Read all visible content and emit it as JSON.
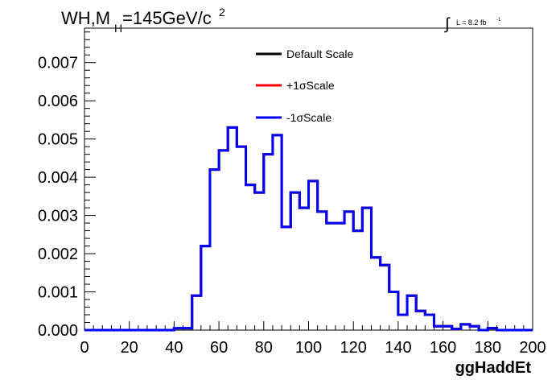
{
  "chart_data": {
    "type": "line",
    "title": "WH,M",
    "title_subscript": "H",
    "title_suffix": "=145GeV/c",
    "title_superscript": "2",
    "lumi_prefix": "∫",
    "lumi_text": "L = 8.2 fb",
    "lumi_superscript": "-1",
    "xlabel": "ggHaddEt",
    "ylabel": "",
    "xlim": [
      0,
      200
    ],
    "ylim": [
      0,
      0.0079
    ],
    "x_ticks": [
      "0",
      "20",
      "40",
      "60",
      "80",
      "100",
      "120",
      "140",
      "160",
      "180",
      "200"
    ],
    "y_ticks": [
      "0.000",
      "0.001",
      "0.002",
      "0.003",
      "0.004",
      "0.005",
      "0.006",
      "0.007"
    ],
    "bin_edges": [
      0,
      4,
      8,
      12,
      16,
      20,
      24,
      28,
      32,
      36,
      40,
      44,
      48,
      52,
      56,
      60,
      64,
      68,
      72,
      76,
      80,
      84,
      88,
      92,
      96,
      100,
      104,
      108,
      112,
      116,
      120,
      124,
      128,
      132,
      136,
      140,
      144,
      148,
      152,
      156,
      160,
      164,
      168,
      172,
      176,
      180,
      184,
      188,
      192,
      196,
      200
    ],
    "legend_position": "top-center",
    "grid": false,
    "series": [
      {
        "name": "Default Scale",
        "color": "#000000",
        "values": [
          0,
          0,
          0,
          0,
          0,
          0,
          0,
          0,
          0,
          0,
          5e-05,
          5e-05,
          0.0009,
          0.0022,
          0.0042,
          0.0047,
          0.0053,
          0.0048,
          0.0038,
          0.0036,
          0.0046,
          0.0051,
          0.0027,
          0.0036,
          0.0032,
          0.0039,
          0.0031,
          0.0028,
          0.0028,
          0.0031,
          0.0026,
          0.0032,
          0.0019,
          0.0017,
          0.001,
          0.0004,
          0.0009,
          0.0005,
          0.0004,
          0.0001,
          0.0001,
          3e-05,
          0.00015,
          0.0001,
          0,
          5e-05,
          0,
          0,
          0,
          0
        ]
      },
      {
        "name": "+1σScale",
        "color": "#ff0000",
        "values": [
          0,
          0,
          0,
          0,
          0,
          0,
          0,
          0,
          0,
          0,
          5e-05,
          5e-05,
          0.0009,
          0.0022,
          0.0042,
          0.0047,
          0.0053,
          0.0048,
          0.0038,
          0.0036,
          0.0046,
          0.0051,
          0.0027,
          0.0036,
          0.0032,
          0.0039,
          0.0031,
          0.0028,
          0.0028,
          0.0031,
          0.0026,
          0.0032,
          0.0019,
          0.0017,
          0.001,
          0.0004,
          0.0009,
          0.0005,
          0.0004,
          0.0001,
          0.0001,
          3e-05,
          0.00015,
          0.0001,
          0,
          5e-05,
          0,
          0,
          0,
          0
        ]
      },
      {
        "name": "-1σScale",
        "color": "#0000ff",
        "values": [
          0,
          0,
          0,
          0,
          0,
          0,
          0,
          0,
          0,
          0,
          5e-05,
          5e-05,
          0.0009,
          0.0022,
          0.0042,
          0.0047,
          0.0053,
          0.0048,
          0.0038,
          0.0036,
          0.0046,
          0.0051,
          0.0027,
          0.0036,
          0.0032,
          0.0039,
          0.0031,
          0.0028,
          0.0028,
          0.0031,
          0.0026,
          0.0032,
          0.0019,
          0.0017,
          0.001,
          0.0004,
          0.0009,
          0.0005,
          0.0004,
          0.0001,
          0.0001,
          3e-05,
          0.00015,
          0.0001,
          0,
          5e-05,
          0,
          0,
          0,
          0
        ]
      }
    ]
  }
}
